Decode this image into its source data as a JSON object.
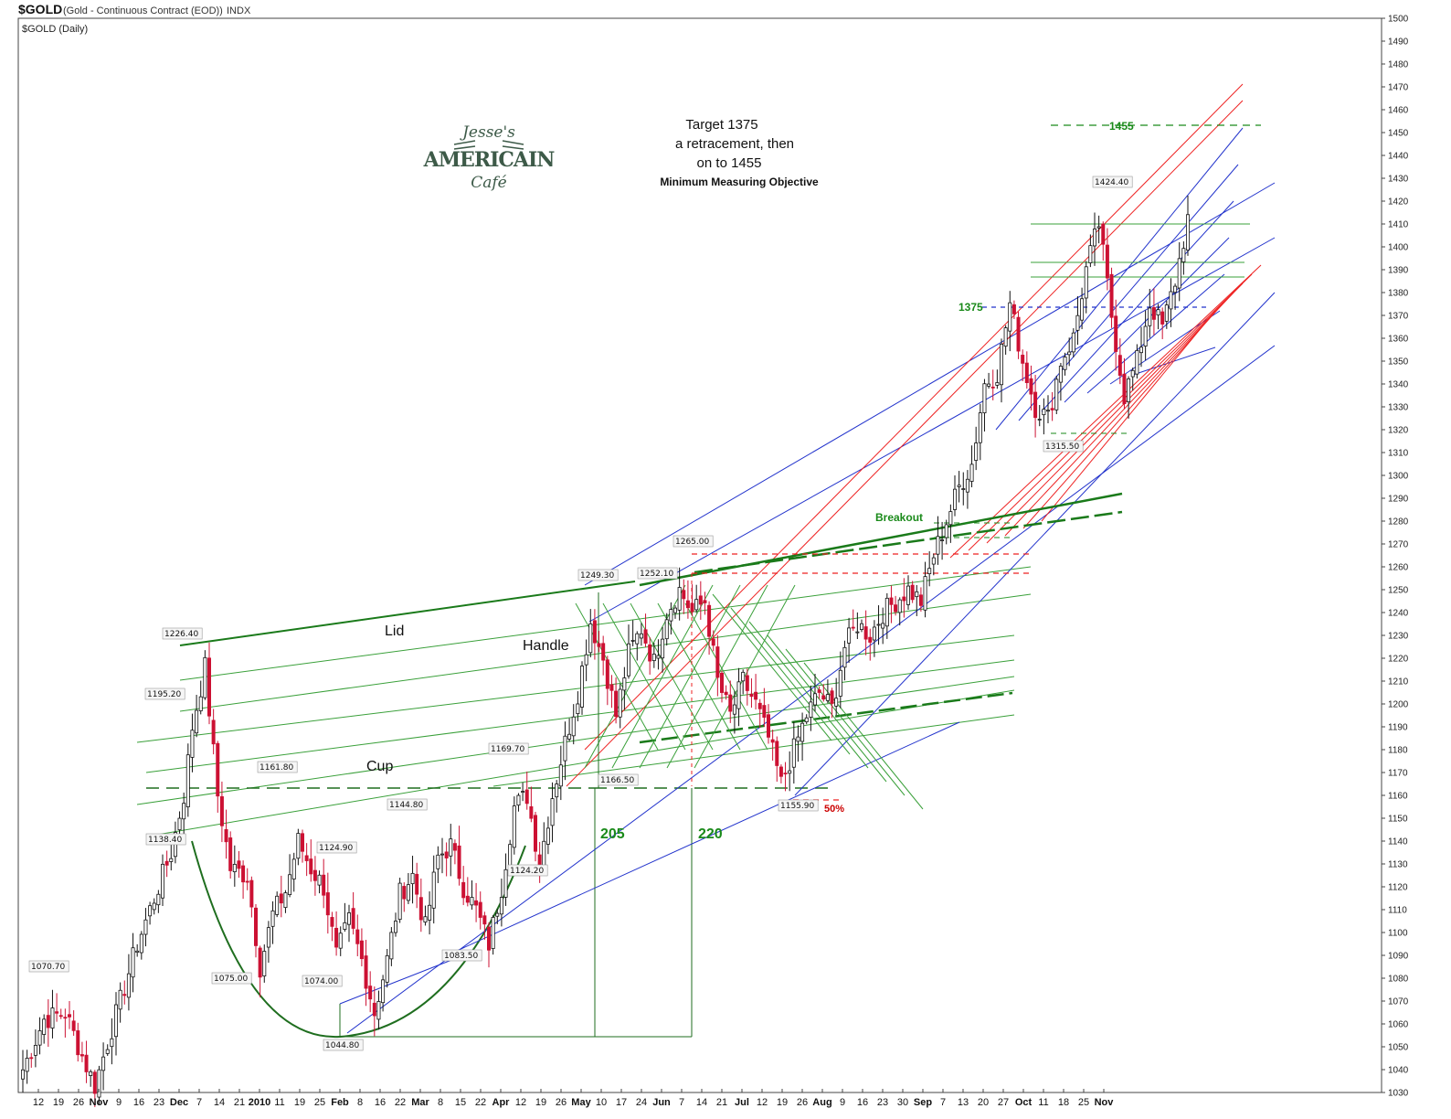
{
  "header": {
    "symbol": "$GOLD",
    "description": "(Gold - Continuous Contract (EOD))",
    "exchange": "INDX",
    "series_label": "$GOLD (Daily)"
  },
  "logo": {
    "line1": "Jesse's",
    "line2": "AMERICAIN",
    "line3": "Café"
  },
  "target_text": {
    "line1": "Target 1375",
    "line2": "a retracement,  then",
    "line3": "on  to 1455",
    "line4": "Minimum Measuring Objective"
  },
  "pattern_labels": {
    "lid": "Lid",
    "handle": "Handle",
    "cup": "Cup",
    "breakout": "Breakout"
  },
  "measure_labels": {
    "m205": "205",
    "m220": "220",
    "t1375": "1375",
    "t1455": "1455",
    "fifty": "50%"
  },
  "colors": {
    "up_candle": "#ffffff",
    "down_candle": "#cc1133",
    "lid_line": "#1a7a1a",
    "channel_blue": "#2233cc",
    "channel_red": "#ee2222",
    "grid": "#e6e6e6"
  },
  "chart_data": {
    "type": "candlestick",
    "title": "$GOLD (Daily)",
    "ylim": [
      1030,
      1500
    ],
    "ytick_step": 10,
    "y_scale": "linear",
    "grid": false,
    "x_axis_labels": [
      "12",
      "19",
      "26",
      "Nov",
      "9",
      "16",
      "23",
      "Dec",
      "7",
      "14",
      "21",
      "2010",
      "11",
      "19",
      "25",
      "Feb",
      "8",
      "16",
      "22",
      "Mar",
      "8",
      "15",
      "22",
      "Apr",
      "12",
      "19",
      "26",
      "May",
      "10",
      "17",
      "24",
      "Jun",
      "7",
      "14",
      "21",
      "Jul",
      "12",
      "19",
      "26",
      "Aug",
      "9",
      "16",
      "23",
      "30",
      "Sep",
      "7",
      "13",
      "20",
      "27",
      "Oct",
      "11",
      "18",
      "25",
      "Nov"
    ],
    "price_labels": [
      {
        "value": 1070.7,
        "text": "1070.70"
      },
      {
        "value": 1226.4,
        "text": "1226.40"
      },
      {
        "value": 1195.2,
        "text": "1195.20"
      },
      {
        "value": 1138.4,
        "text": "1138.40"
      },
      {
        "value": 1075.0,
        "text": "1075.00"
      },
      {
        "value": 1161.8,
        "text": "1161.80"
      },
      {
        "value": 1124.9,
        "text": "1124.90"
      },
      {
        "value": 1074.0,
        "text": "1074.00"
      },
      {
        "value": 1044.8,
        "text": "1044.80"
      },
      {
        "value": 1144.8,
        "text": "1144.80"
      },
      {
        "value": 1083.5,
        "text": "1083.50"
      },
      {
        "value": 1169.7,
        "text": "1169.70"
      },
      {
        "value": 1124.2,
        "text": "1124.20"
      },
      {
        "value": 1249.3,
        "text": "1249.30"
      },
      {
        "value": 1166.5,
        "text": "1166.50"
      },
      {
        "value": 1252.1,
        "text": "1252.10"
      },
      {
        "value": 1265.0,
        "text": "1265.00"
      },
      {
        "value": 1155.9,
        "text": "1155.90"
      },
      {
        "value": 1424.4,
        "text": "1424.40"
      },
      {
        "value": 1315.5,
        "text": "1315.50"
      }
    ],
    "key_levels": [
      1375,
      1455
    ],
    "measured_moves": [
      205,
      220
    ],
    "anchors": [
      {
        "bar": 0,
        "close": 1040
      },
      {
        "bar": 5,
        "close": 1062
      },
      {
        "bar": 10,
        "close": 1065
      },
      {
        "bar": 14,
        "close": 1046
      },
      {
        "bar": 17,
        "close": 1033
      },
      {
        "bar": 20,
        "close": 1052
      },
      {
        "bar": 23,
        "close": 1070
      },
      {
        "bar": 27,
        "close": 1095
      },
      {
        "bar": 31,
        "close": 1115
      },
      {
        "bar": 35,
        "close": 1135
      },
      {
        "bar": 38,
        "close": 1160
      },
      {
        "bar": 40,
        "close": 1190
      },
      {
        "bar": 43,
        "close": 1216
      },
      {
        "bar": 46,
        "close": 1160
      },
      {
        "bar": 49,
        "close": 1128
      },
      {
        "bar": 53,
        "close": 1125
      },
      {
        "bar": 56,
        "close": 1085
      },
      {
        "bar": 59,
        "close": 1108
      },
      {
        "bar": 62,
        "close": 1118
      },
      {
        "bar": 65,
        "close": 1140
      },
      {
        "bar": 68,
        "close": 1128
      },
      {
        "bar": 71,
        "close": 1120
      },
      {
        "bar": 74,
        "close": 1090
      },
      {
        "bar": 77,
        "close": 1105
      },
      {
        "bar": 80,
        "close": 1088
      },
      {
        "bar": 83,
        "close": 1065
      },
      {
        "bar": 86,
        "close": 1088
      },
      {
        "bar": 89,
        "close": 1117
      },
      {
        "bar": 92,
        "close": 1125
      },
      {
        "bar": 95,
        "close": 1102
      },
      {
        "bar": 98,
        "close": 1133
      },
      {
        "bar": 101,
        "close": 1138
      },
      {
        "bar": 104,
        "close": 1120
      },
      {
        "bar": 107,
        "close": 1110
      },
      {
        "bar": 110,
        "close": 1095
      },
      {
        "bar": 113,
        "close": 1120
      },
      {
        "bar": 116,
        "close": 1155
      },
      {
        "bar": 119,
        "close": 1160
      },
      {
        "bar": 122,
        "close": 1130
      },
      {
        "bar": 125,
        "close": 1160
      },
      {
        "bar": 128,
        "close": 1183
      },
      {
        "bar": 131,
        "close": 1205
      },
      {
        "bar": 134,
        "close": 1236
      },
      {
        "bar": 137,
        "close": 1220
      },
      {
        "bar": 140,
        "close": 1195
      },
      {
        "bar": 143,
        "close": 1222
      },
      {
        "bar": 146,
        "close": 1233
      },
      {
        "bar": 149,
        "close": 1218
      },
      {
        "bar": 152,
        "close": 1240
      },
      {
        "bar": 155,
        "close": 1250
      },
      {
        "bar": 158,
        "close": 1240
      },
      {
        "bar": 161,
        "close": 1245
      },
      {
        "bar": 164,
        "close": 1210
      },
      {
        "bar": 167,
        "close": 1195
      },
      {
        "bar": 170,
        "close": 1210
      },
      {
        "bar": 173,
        "close": 1200
      },
      {
        "bar": 176,
        "close": 1185
      },
      {
        "bar": 179,
        "close": 1165
      },
      {
        "bar": 182,
        "close": 1180
      },
      {
        "bar": 185,
        "close": 1195
      },
      {
        "bar": 188,
        "close": 1205
      },
      {
        "bar": 191,
        "close": 1198
      },
      {
        "bar": 194,
        "close": 1225
      },
      {
        "bar": 197,
        "close": 1235
      },
      {
        "bar": 200,
        "close": 1230
      },
      {
        "bar": 203,
        "close": 1240
      },
      {
        "bar": 206,
        "close": 1245
      },
      {
        "bar": 209,
        "close": 1250
      },
      {
        "bar": 212,
        "close": 1245
      },
      {
        "bar": 215,
        "close": 1265
      },
      {
        "bar": 218,
        "close": 1280
      },
      {
        "bar": 221,
        "close": 1295
      },
      {
        "bar": 224,
        "close": 1305
      },
      {
        "bar": 227,
        "close": 1340
      },
      {
        "bar": 230,
        "close": 1345
      },
      {
        "bar": 233,
        "close": 1375
      },
      {
        "bar": 236,
        "close": 1350
      },
      {
        "bar": 239,
        "close": 1330
      },
      {
        "bar": 242,
        "close": 1325
      },
      {
        "bar": 245,
        "close": 1350
      },
      {
        "bar": 248,
        "close": 1360
      },
      {
        "bar": 251,
        "close": 1390
      },
      {
        "bar": 254,
        "close": 1410
      },
      {
        "bar": 257,
        "close": 1370
      },
      {
        "bar": 260,
        "close": 1335
      },
      {
        "bar": 263,
        "close": 1350
      },
      {
        "bar": 266,
        "close": 1375
      },
      {
        "bar": 269,
        "close": 1365
      },
      {
        "bar": 272,
        "close": 1385
      },
      {
        "bar": 275,
        "close": 1412
      }
    ]
  }
}
